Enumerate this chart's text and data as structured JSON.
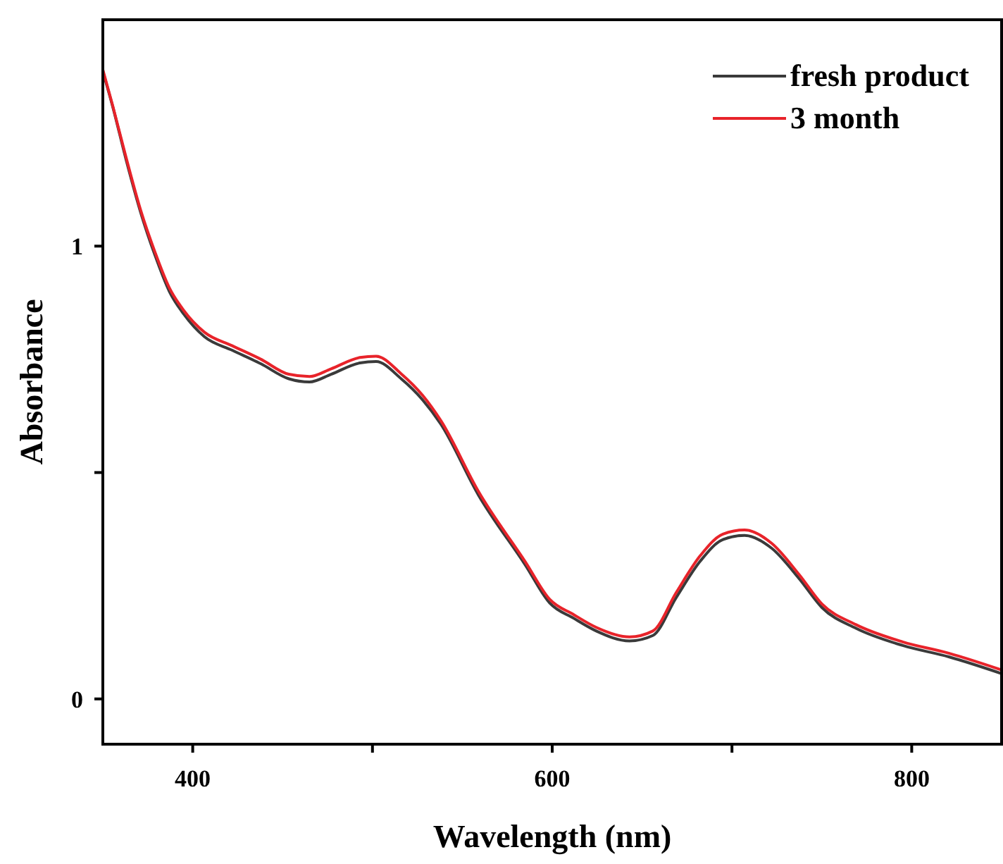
{
  "chart_data": {
    "type": "line",
    "xlabel": "Wavelength (nm)",
    "ylabel": "Absorbance",
    "xlim": [
      350,
      850
    ],
    "ylim": [
      -0.1,
      1.5
    ],
    "xticks": [
      400,
      {
        "value": 500,
        "label": null
      },
      600,
      {
        "value": 700,
        "label": null
      },
      800
    ],
    "yticks": [
      0,
      {
        "value": 0.5,
        "label": null
      },
      1
    ],
    "x": [
      350,
      355.5,
      363,
      371,
      379,
      387,
      395,
      406.5,
      422,
      438,
      453.5,
      465,
      477,
      493,
      502,
      516,
      528,
      538,
      559,
      585,
      598.6,
      612,
      624.5,
      643,
      656,
      669,
      682.5,
      695,
      707,
      722,
      737.5,
      750,
      769,
      795,
      820.6,
      850
    ],
    "series": [
      {
        "name": "fresh product",
        "color": "#3a3a3a",
        "values": [
          1.386,
          1.308,
          1.19,
          1.075,
          0.98,
          0.9,
          0.85,
          0.8,
          0.77,
          0.74,
          0.707,
          0.7,
          0.717,
          0.742,
          0.745,
          0.707,
          0.66,
          0.607,
          0.45,
          0.296,
          0.212,
          0.178,
          0.15,
          0.128,
          0.14,
          0.224,
          0.305,
          0.352,
          0.361,
          0.333,
          0.265,
          0.202,
          0.156,
          0.118,
          0.093,
          0.056
        ]
      },
      {
        "name": "3 month",
        "color": "#e8232a",
        "values": [
          1.39,
          1.31,
          1.195,
          1.08,
          0.987,
          0.908,
          0.858,
          0.81,
          0.78,
          0.75,
          0.717,
          0.712,
          0.729,
          0.754,
          0.757,
          0.718,
          0.67,
          0.615,
          0.458,
          0.303,
          0.22,
          0.186,
          0.158,
          0.137,
          0.15,
          0.235,
          0.317,
          0.364,
          0.373,
          0.344,
          0.274,
          0.21,
          0.164,
          0.126,
          0.101,
          0.064
        ]
      }
    ],
    "legend": "top right",
    "line_style": "solid",
    "marker": "none"
  }
}
